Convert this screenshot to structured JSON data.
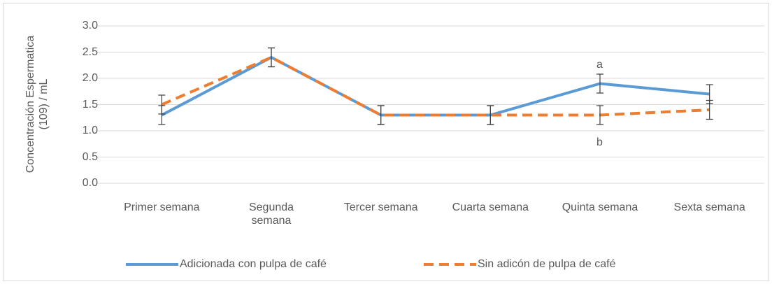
{
  "chart_data": {
    "type": "line",
    "y_label": "Concentración Espermatica (109) / mL",
    "categories": [
      "Primer semana",
      "Segunda semana",
      "Tercer semana",
      "Cuarta semana",
      "Quinta semana",
      "Sexta semana"
    ],
    "series": [
      {
        "name": "Adicionada con pulpa de café",
        "color": "#5b9bd5",
        "dashed": false,
        "values": [
          1.3,
          2.4,
          1.3,
          1.3,
          1.9,
          1.7
        ],
        "errors": [
          0.18,
          0.18,
          0.18,
          0.18,
          0.18,
          0.18
        ]
      },
      {
        "name": "Sin adicón de pulpa de café",
        "color": "#ed7d31",
        "dashed": true,
        "values": [
          1.5,
          2.4,
          1.3,
          1.3,
          1.3,
          1.4
        ],
        "errors": [
          0.18,
          0.18,
          0.18,
          0.18,
          0.18,
          0.18
        ]
      }
    ],
    "annotations": [
      {
        "text": "a",
        "category": 4,
        "y": 2.25
      },
      {
        "text": "b",
        "category": 4,
        "y": 0.78
      }
    ],
    "ylim": [
      0,
      3
    ],
    "yticks": [
      {
        "value": 0,
        "label": "0.0"
      },
      0.5,
      {
        "value": 1,
        "label": "1.0"
      },
      1.5,
      {
        "value": 2,
        "label": "2.0"
      },
      2.5,
      {
        "value": 3,
        "label": "3.0"
      }
    ],
    "grid": true,
    "legend": "bottom"
  }
}
